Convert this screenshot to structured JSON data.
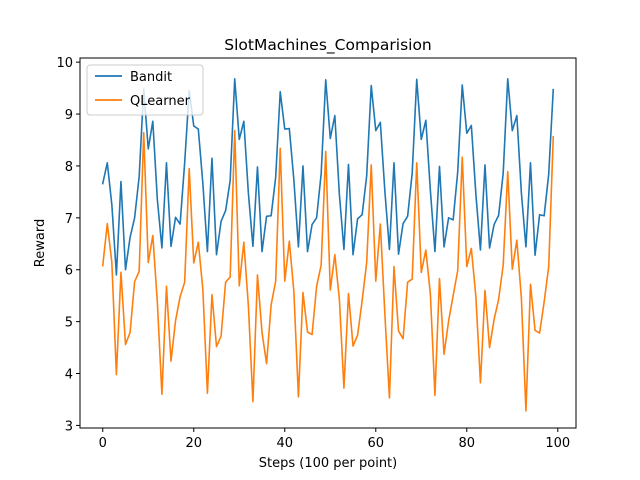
{
  "chart_data": {
    "type": "line",
    "title": "SlotMachines_Comparision",
    "xlabel": "Steps (100 per point)",
    "ylabel": "Reward",
    "xlim": [
      -5,
      104
    ],
    "ylim": [
      2.95,
      10.08
    ],
    "xticks": [
      0,
      20,
      40,
      60,
      80,
      100
    ],
    "yticks": [
      3,
      4,
      5,
      6,
      7,
      8,
      9,
      10
    ],
    "legend_position": "upper-left",
    "grid": false,
    "series": [
      {
        "name": "Bandit",
        "color": "#1f77b4",
        "values": [
          7.66,
          8.06,
          7.25,
          5.9,
          7.7,
          6.0,
          6.62,
          7.0,
          7.79,
          9.48,
          8.33,
          8.86,
          7.35,
          6.42,
          8.06,
          6.45,
          7.01,
          6.88,
          8.06,
          9.45,
          8.77,
          8.71,
          7.66,
          6.35,
          8.15,
          6.29,
          6.93,
          7.14,
          7.72,
          9.68,
          8.51,
          8.86,
          7.48,
          6.45,
          7.98,
          6.35,
          7.03,
          7.04,
          7.78,
          9.43,
          8.71,
          8.72,
          7.73,
          6.44,
          8.0,
          6.35,
          6.87,
          7.0,
          7.85,
          9.66,
          8.53,
          8.97,
          7.45,
          6.39,
          8.03,
          6.29,
          6.98,
          7.06,
          7.81,
          9.55,
          8.68,
          8.84,
          7.51,
          6.39,
          8.06,
          6.3,
          6.89,
          7.03,
          7.86,
          9.67,
          8.51,
          8.88,
          7.52,
          6.35,
          7.99,
          6.44,
          7.0,
          6.96,
          7.88,
          9.56,
          8.63,
          8.78,
          7.45,
          6.38,
          8.02,
          6.42,
          6.87,
          7.05,
          7.86,
          9.68,
          8.68,
          8.97,
          7.48,
          6.44,
          8.06,
          6.28,
          7.06,
          7.04,
          7.84,
          9.47
        ]
      },
      {
        "name": "QLearner",
        "color": "#ff7f0e",
        "values": [
          6.08,
          6.89,
          6.14,
          3.98,
          5.95,
          4.56,
          4.79,
          5.77,
          5.97,
          8.64,
          6.14,
          6.66,
          5.37,
          3.6,
          5.68,
          4.24,
          5.02,
          5.48,
          5.76,
          7.95,
          6.13,
          6.53,
          5.62,
          3.62,
          5.52,
          4.52,
          4.72,
          5.76,
          5.86,
          8.68,
          5.69,
          6.53,
          5.31,
          3.46,
          5.9,
          4.79,
          4.19,
          5.32,
          5.78,
          8.34,
          5.78,
          6.55,
          5.58,
          3.55,
          5.56,
          4.8,
          4.75,
          5.68,
          6.09,
          8.28,
          5.61,
          6.29,
          5.43,
          3.72,
          5.54,
          4.53,
          4.74,
          5.4,
          6.14,
          8.02,
          5.78,
          6.88,
          5.14,
          3.53,
          6.06,
          4.82,
          4.67,
          5.76,
          5.82,
          8.06,
          5.95,
          6.38,
          5.53,
          3.58,
          5.83,
          4.37,
          5.01,
          5.5,
          5.98,
          8.17,
          6.06,
          6.41,
          5.48,
          3.82,
          5.6,
          4.5,
          5.04,
          5.43,
          6.09,
          7.89,
          6.01,
          6.57,
          5.45,
          3.28,
          5.72,
          4.83,
          4.78,
          5.38,
          6.06,
          8.56
        ]
      }
    ]
  }
}
